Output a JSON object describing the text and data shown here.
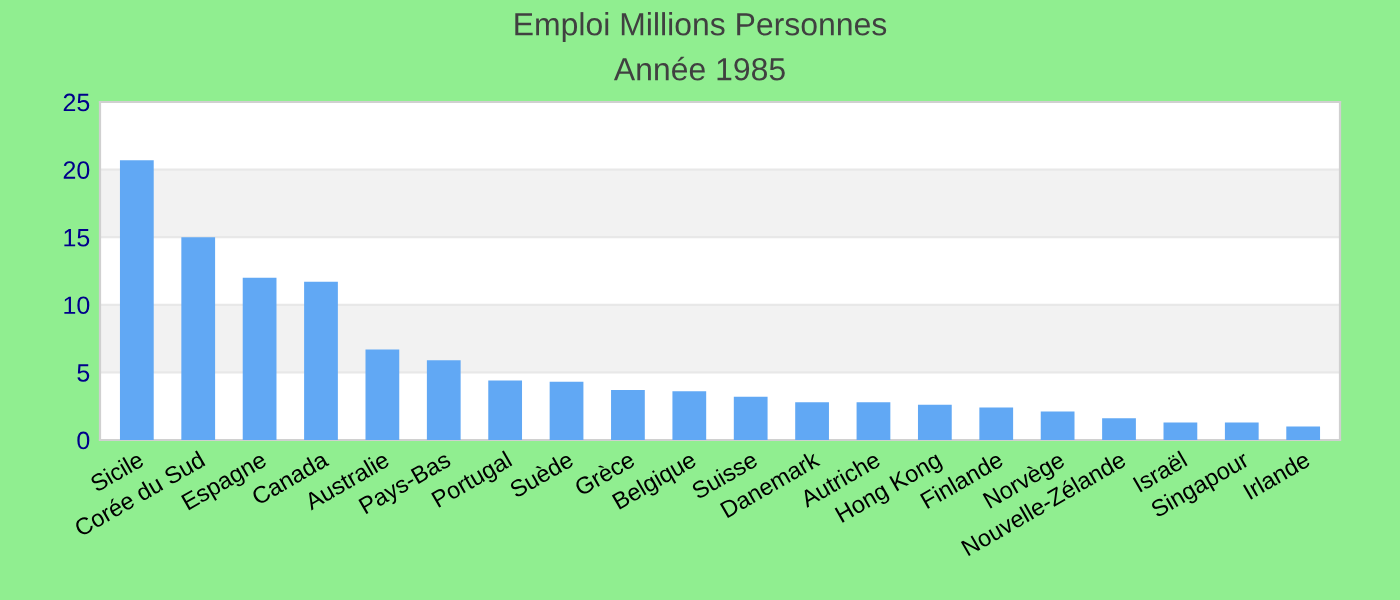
{
  "chart_data": {
    "type": "bar",
    "title": "Emploi Millions Personnes",
    "subtitle": "Année 1985",
    "categories": [
      "Sicile",
      "Corée du Sud",
      "Espagne",
      "Canada",
      "Australie",
      "Pays-Bas",
      "Portugal",
      "Suède",
      "Grèce",
      "Belgique",
      "Suisse",
      "Danemark",
      "Autriche",
      "Hong Kong",
      "Finlande",
      "Norvège",
      "Nouvelle-Zélande",
      "Israël",
      "Singapour",
      "Irlande"
    ],
    "values": [
      20.7,
      15.0,
      12.0,
      11.7,
      6.7,
      5.9,
      4.4,
      4.3,
      3.7,
      3.6,
      3.2,
      2.8,
      2.8,
      2.6,
      2.4,
      2.1,
      1.6,
      1.3,
      1.3,
      1.0
    ],
    "color": "#61a8f4",
    "ylim": [
      0,
      25
    ],
    "yticks": [
      0,
      5,
      10,
      15,
      20,
      25
    ],
    "grid": "y",
    "legend": false
  }
}
